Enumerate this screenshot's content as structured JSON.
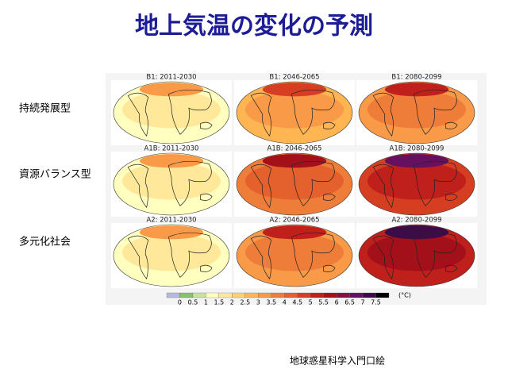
{
  "title": "地上気温の変化の予測",
  "rows": [
    "持続発展型",
    "資源バランス型",
    "多元化社会"
  ],
  "panels": [
    [
      "B1: 2011-2030",
      "B1: 2046-2065",
      "B1: 2080-2099"
    ],
    [
      "A1B: 2011-2030",
      "A1B: 2046-2065",
      "A1B: 2080-2099"
    ],
    [
      "A2: 2011-2030",
      "A2: 2046-2065",
      "A2: 2080-2099"
    ]
  ],
  "colorbar": {
    "ticks": [
      0,
      0.5,
      1,
      1.5,
      2,
      2.5,
      3,
      3.5,
      4,
      4.5,
      5,
      5.5,
      6,
      6.5,
      7,
      7.5
    ],
    "colors": [
      "#b8b8dc",
      "#86c26a",
      "#c6e2a0",
      "#ffffc0",
      "#ffe89a",
      "#ffd070",
      "#ffb552",
      "#f89a48",
      "#ef7d3a",
      "#e4602c",
      "#d63e22",
      "#c0201c",
      "#a3101a",
      "#861040",
      "#661060",
      "#3c0c48",
      "#000000"
    ],
    "unit": "(°C)"
  },
  "source": "地球惑星科学入門口絵"
}
